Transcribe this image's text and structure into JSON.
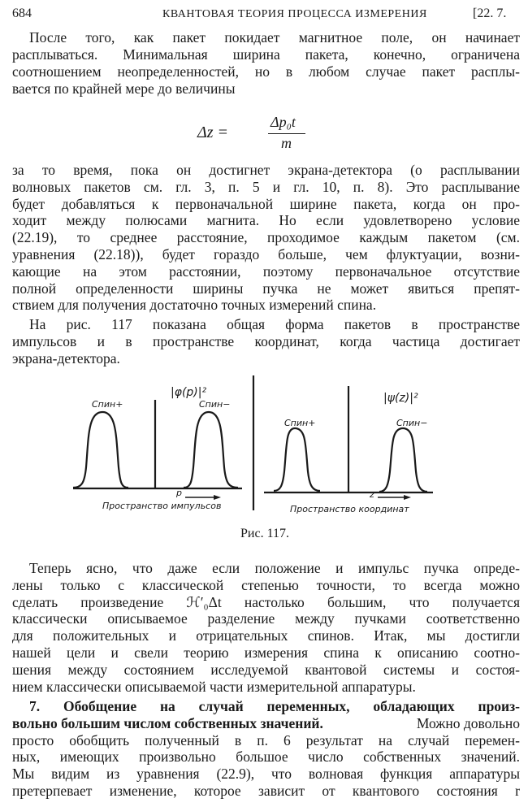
{
  "header": {
    "page_number": "684",
    "running_title": "КВАНТОВАЯ ТЕОРИЯ ПРОЦЕССА ИЗМЕРЕНИЯ",
    "section": "[22. 7."
  },
  "para1": [
    "После того, как пакет покидает магнитное поле, он начинает",
    "расплываться. Минимальная ширина пакета, конечно, ограничена",
    "соотношением неопределенностей, но в любом случае пакет расплы-",
    "вается по крайней мере до величины"
  ],
  "formula": {
    "lhs": "Δz =",
    "numerator": "Δp₀t",
    "denominator": "m"
  },
  "para2": [
    "за то время, пока он достигнет экрана-детектора (о расплывании",
    "волновых пакетов см. гл. 3, п. 5 и гл. 10, п. 8). Это расплывание",
    "будет добавляться к первоначальной ширине пакета, когда он про-",
    "ходит между полюсами магнита. Но если удовлетворено условие",
    "(22.19), то среднее расстояние, проходимое каждым пакетом (см.",
    "уравнения (22.18)), будет гораздо больше, чем флуктуации, возни-",
    "кающие на этом расстоянии, поэтому первоначальное отсутствие",
    "полной определенности ширины пучка не может явиться препят-",
    "ствием для получения достаточно точных измерений спина."
  ],
  "para3": [
    "На рис. 117 показана общая форма пакетов в пространстве",
    "импульсов и в пространстве координат, когда частица достигает",
    "экрана-детектора."
  ],
  "figure": {
    "left": {
      "ylabel": "|φ(p)|²",
      "peak_left": "Спин+",
      "peak_right": "Спин−",
      "axis_var": "p",
      "xlabel": "Пространство импульсов"
    },
    "right": {
      "ylabel": "|ψ(z)|²",
      "peak_left": "Спин+",
      "peak_right": "Спин−",
      "axis_var": "z",
      "xlabel": "Пространство координат"
    },
    "caption": "Рис. 117."
  },
  "para4": [
    "Теперь ясно, что даже если положение и импульс пучка опреде-",
    "лены только с классической степенью точности, то всегда можно",
    "сделать произведение ℋ′₀Δt настолько большим, что получается",
    "классически описываемое разделение между пучками соответственно",
    "для положительных и отрицательных спинов. Итак, мы достигли",
    "нашей цели и свели теорию измерения спина к описанию соотно-",
    "шения между состоянием исследуемой квантовой системы и состоя-",
    "нием классически описываемой части измерительной аппаратуры."
  ],
  "section7": {
    "heading_line1": "7. Обобщение на случай переменных, обладающих произ-",
    "heading_line2": "вольно большим числом собственных значений.",
    "line2_rest": "Можно довольно",
    "lines": [
      "просто обобщить полученный в п. 6 результат на случай перемен-",
      "ных, имеющих произвольно большое число собственных значений.",
      "Мы видим из уравнения (22.9), что волновая функция аппаратуры",
      "претерпевает изменение, которое зависит от квантового состояния r"
    ]
  }
}
